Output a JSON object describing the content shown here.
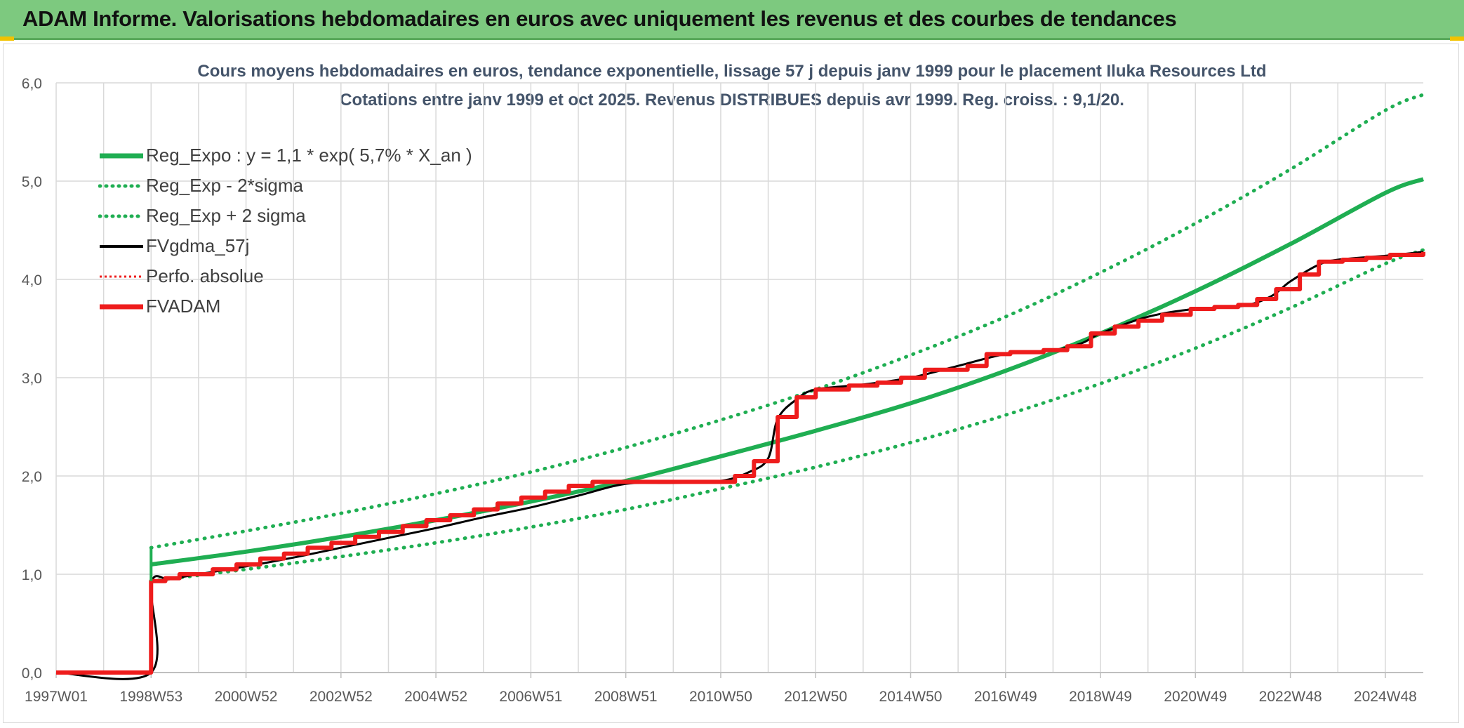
{
  "banner": {
    "title": "ADAM Informe. Valorisations hebdomadaires en euros avec uniquement les revenus et des courbes de tendances"
  },
  "colors": {
    "banner_bg": "#7dc97f",
    "green": "#1fae52",
    "red": "#ee1c1c",
    "black": "#000000",
    "title_text": "#44546a",
    "grid": "#d9d9d9"
  },
  "chart_data": {
    "type": "line",
    "title": "Cours moyens hebdomadaires en euros, tendance exponentielle, lissage 57 j depuis janv 1999 pour le placement Iluka Resources Ltd",
    "subtitle": "Cotations entre janv 1999 et oct 2025. Revenus DISTRIBUES depuis avr 1999. Reg. croiss. : 9,1/20.",
    "xlabel": "",
    "ylabel": "",
    "xlim": [
      1997.0,
      2025.8
    ],
    "ylim": [
      0,
      6
    ],
    "yticks": [
      "0,0",
      "1,0",
      "2,0",
      "3,0",
      "4,0",
      "5,0",
      "6,0"
    ],
    "xticks": [
      {
        "label": "1997W01",
        "x": 1997.0
      },
      {
        "label": "1998W53",
        "x": 1999.0
      },
      {
        "label": "2000W52",
        "x": 2001.0
      },
      {
        "label": "2002W52",
        "x": 2003.0
      },
      {
        "label": "2004W52",
        "x": 2005.0
      },
      {
        "label": "2006W51",
        "x": 2007.0
      },
      {
        "label": "2008W51",
        "x": 2009.0
      },
      {
        "label": "2010W50",
        "x": 2011.0
      },
      {
        "label": "2012W50",
        "x": 2013.0
      },
      {
        "label": "2014W50",
        "x": 2015.0
      },
      {
        "label": "2016W49",
        "x": 2017.0
      },
      {
        "label": "2018W49",
        "x": 2019.0
      },
      {
        "label": "2020W49",
        "x": 2021.0
      },
      {
        "label": "2022W48",
        "x": 2023.0
      },
      {
        "label": "2024W48",
        "x": 2025.0
      }
    ],
    "grid": true,
    "legend_position": "top-left",
    "series": [
      {
        "name": "Reg_Expo : y = 1,1 * exp( 5,7% *  X_an )",
        "style": "solid-thick",
        "color": "#1fae52",
        "x": [
          1999.0,
          2001.0,
          2003.0,
          2005.0,
          2007.0,
          2009.0,
          2011.0,
          2013.0,
          2015.0,
          2017.0,
          2019.0,
          2021.0,
          2023.0,
          2025.0,
          2025.8
        ],
        "y": [
          1.1,
          1.23,
          1.38,
          1.55,
          1.74,
          1.95,
          2.2,
          2.46,
          2.74,
          3.07,
          3.45,
          3.88,
          4.36,
          4.88,
          5.02
        ]
      },
      {
        "name": "Reg_Exp - 2*sigma",
        "style": "dotted",
        "color": "#1fae52",
        "x": [
          1999.0,
          2001.0,
          2003.0,
          2005.0,
          2007.0,
          2009.0,
          2011.0,
          2013.0,
          2015.0,
          2017.0,
          2019.0,
          2021.0,
          2023.0,
          2025.0,
          2025.8
        ],
        "y": [
          0.93,
          1.05,
          1.18,
          1.32,
          1.48,
          1.66,
          1.87,
          2.09,
          2.34,
          2.62,
          2.94,
          3.3,
          3.71,
          4.16,
          4.3
        ]
      },
      {
        "name": "Reg_Exp + 2 sigma",
        "style": "dotted",
        "color": "#1fae52",
        "x": [
          1999.0,
          2001.0,
          2003.0,
          2005.0,
          2007.0,
          2009.0,
          2011.0,
          2013.0,
          2015.0,
          2017.0,
          2019.0,
          2021.0,
          2023.0,
          2025.0,
          2025.8
        ],
        "y": [
          1.27,
          1.44,
          1.62,
          1.82,
          2.04,
          2.29,
          2.57,
          2.88,
          3.23,
          3.62,
          4.07,
          4.57,
          5.12,
          5.72,
          5.88
        ]
      },
      {
        "name": "FVgdma_57j",
        "style": "solid-thin",
        "color": "#000000",
        "x": [
          1997.0,
          1999.0,
          1999.0,
          1999.4,
          2000.0,
          2001.0,
          2002.0,
          2003.0,
          2004.0,
          2005.0,
          2006.0,
          2007.0,
          2008.0,
          2009.0,
          2010.0,
          2011.0,
          2011.6,
          2012.0,
          2012.2,
          2012.6,
          2013.0,
          2014.0,
          2015.0,
          2016.0,
          2017.0,
          2018.0,
          2018.6,
          2019.0,
          2020.0,
          2021.0,
          2022.0,
          2022.6,
          2023.0,
          2023.6,
          2024.0,
          2025.0,
          2025.8
        ],
        "y": [
          0.0,
          0.0,
          0.9,
          0.95,
          1.0,
          1.08,
          1.17,
          1.27,
          1.37,
          1.47,
          1.58,
          1.68,
          1.8,
          1.92,
          1.93,
          1.95,
          2.04,
          2.18,
          2.58,
          2.78,
          2.88,
          2.93,
          3.0,
          3.12,
          3.24,
          3.28,
          3.35,
          3.45,
          3.62,
          3.7,
          3.73,
          3.83,
          3.98,
          4.15,
          4.2,
          4.24,
          4.28
        ]
      },
      {
        "name": "Perfo. absolue",
        "style": "dotted",
        "color": "#ee1c1c",
        "x": [
          1997.0,
          1999.0
        ],
        "y": [
          0.0,
          0.0
        ]
      },
      {
        "name": "FVADAM",
        "style": "step-thick",
        "color": "#ee1c1c",
        "x": [
          1997.0,
          1999.0,
          1999.0,
          1999.3,
          1999.6,
          2000.3,
          2000.8,
          2001.3,
          2001.8,
          2002.3,
          2002.8,
          2003.3,
          2003.8,
          2004.3,
          2004.8,
          2005.3,
          2005.8,
          2006.3,
          2006.8,
          2007.3,
          2007.8,
          2008.3,
          2010.8,
          2011.3,
          2011.7,
          2012.2,
          2012.6,
          2013.0,
          2013.7,
          2014.3,
          2014.8,
          2015.3,
          2016.2,
          2016.6,
          2017.1,
          2017.8,
          2018.3,
          2018.8,
          2019.3,
          2019.8,
          2020.3,
          2020.9,
          2021.4,
          2021.9,
          2022.3,
          2022.7,
          2023.2,
          2023.6,
          2024.1,
          2024.6,
          2025.1,
          2025.8
        ],
        "y": [
          0.0,
          0.0,
          0.93,
          0.96,
          1.0,
          1.05,
          1.1,
          1.16,
          1.21,
          1.27,
          1.32,
          1.38,
          1.43,
          1.49,
          1.55,
          1.6,
          1.66,
          1.72,
          1.78,
          1.84,
          1.9,
          1.94,
          1.94,
          2.0,
          2.15,
          2.6,
          2.8,
          2.88,
          2.92,
          2.95,
          3.0,
          3.08,
          3.12,
          3.24,
          3.26,
          3.28,
          3.32,
          3.45,
          3.52,
          3.58,
          3.64,
          3.7,
          3.72,
          3.74,
          3.8,
          3.9,
          4.05,
          4.18,
          4.2,
          4.22,
          4.25,
          4.28
        ]
      }
    ]
  }
}
